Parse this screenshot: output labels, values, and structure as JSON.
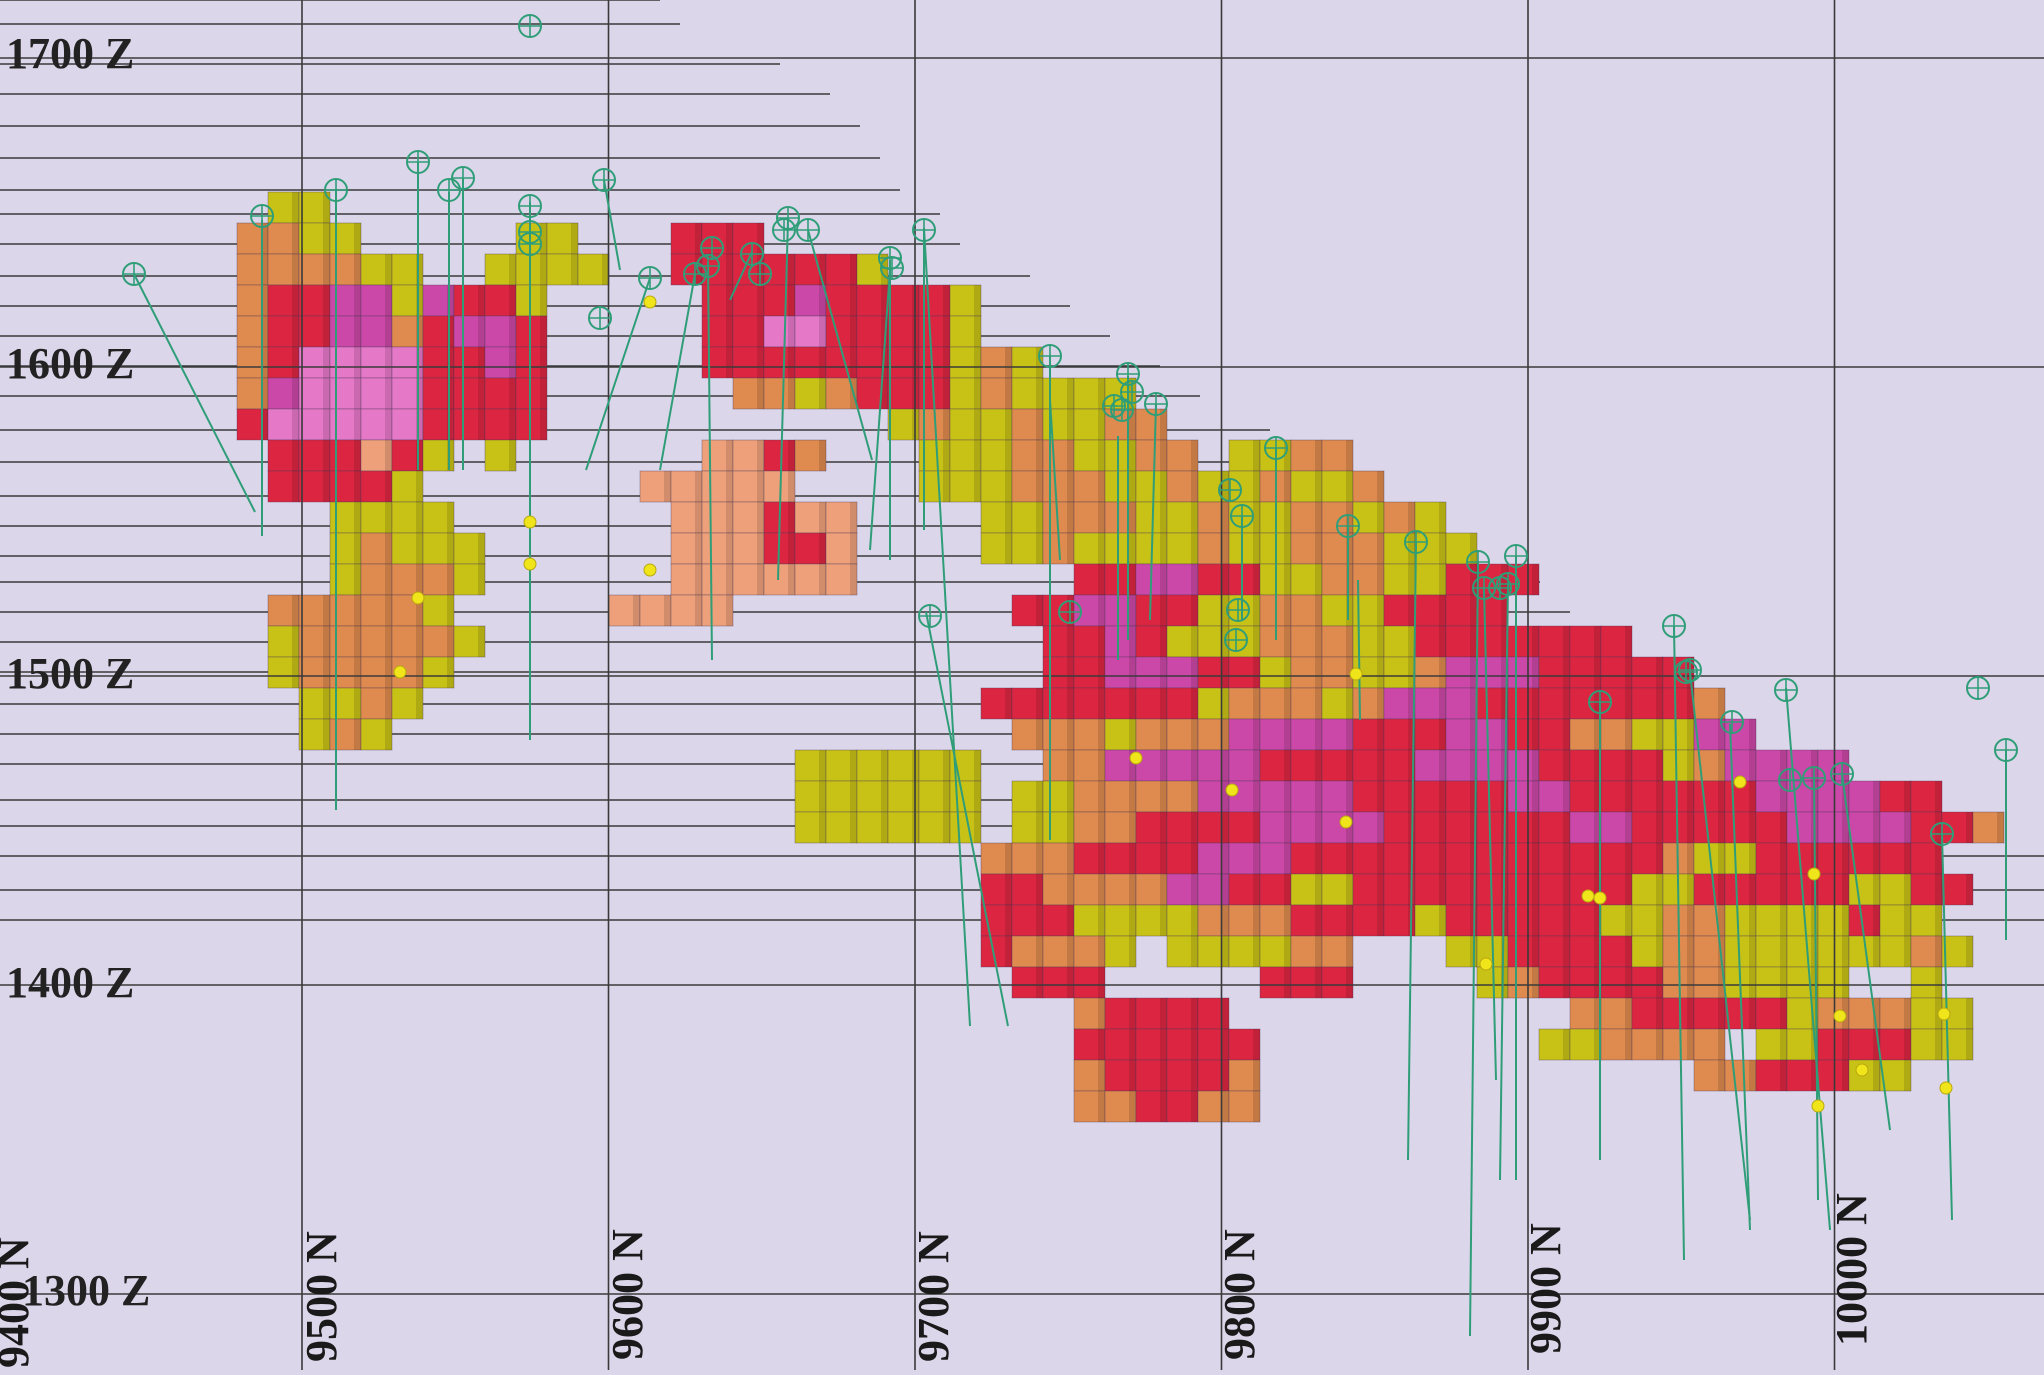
{
  "section": {
    "elevation_labels": [
      "1700 Z",
      "1600 Z",
      "1500 Z",
      "1400 Z",
      "1300 Z"
    ],
    "elevation_values": [
      1700,
      1600,
      1500,
      1400,
      1300
    ],
    "northing_labels": [
      "9400 N",
      "9500 N",
      "9600 N",
      "9700 N",
      "9800 N",
      "9900 N",
      "10000 N"
    ],
    "northing_values": [
      9400,
      9500,
      9600,
      9700,
      9800,
      9900,
      10000
    ],
    "block_palette": {
      "yellow": "#c8c217",
      "orange": "#df8a4e",
      "peach": "#eda07a",
      "red": "#dc2641",
      "magenta": "#cc48a8",
      "pink": "#e678c8"
    },
    "grid_color": "#3a3a3a",
    "drillhole_color": "#2f9e78",
    "assay_marker_color": "#f0e41a",
    "background_color": "#dcd6ea"
  }
}
